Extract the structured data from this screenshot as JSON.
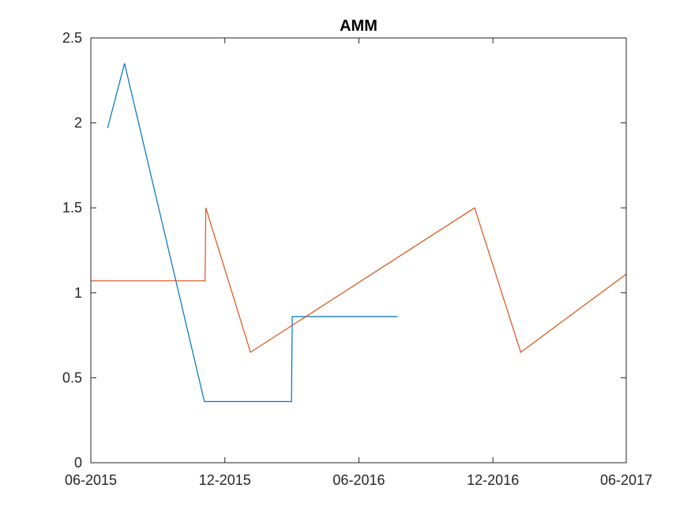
{
  "chart_data": {
    "type": "line",
    "title": "AMM",
    "xlabel": "",
    "ylabel": "",
    "x_axis_type": "date",
    "xlim": [
      "2015-06-01",
      "2017-06-01"
    ],
    "ylim": [
      0,
      2.5
    ],
    "x_ticks": [
      "2015-06-01",
      "2015-12-01",
      "2016-06-01",
      "2016-12-01",
      "2017-06-01"
    ],
    "x_tick_labels": [
      "06-2015",
      "12-2015",
      "06-2016",
      "12-2016",
      "06-2017"
    ],
    "y_ticks": [
      0,
      0.5,
      1,
      1.5,
      2,
      2.5
    ],
    "y_tick_labels": [
      "0",
      "0.5",
      "1",
      "1.5",
      "2",
      "2.5"
    ],
    "grid": false,
    "legend": "none",
    "series": [
      {
        "color": "#0072BD",
        "points": [
          {
            "x": "2015-06-24",
            "y": 1.97
          },
          {
            "x": "2015-07-17",
            "y": 2.35
          },
          {
            "x": "2015-11-03",
            "y": 0.36
          },
          {
            "x": "2016-03-01",
            "y": 0.36
          },
          {
            "x": "2016-03-02",
            "y": 0.86
          },
          {
            "x": "2016-07-24",
            "y": 0.86
          }
        ]
      },
      {
        "color": "#D95319",
        "points": [
          {
            "x": "2015-06-01",
            "y": 1.07
          },
          {
            "x": "2015-11-04",
            "y": 1.07
          },
          {
            "x": "2015-11-05",
            "y": 1.5
          },
          {
            "x": "2016-01-05",
            "y": 0.65
          },
          {
            "x": "2016-11-06",
            "y": 1.5
          },
          {
            "x": "2017-01-08",
            "y": 0.65
          },
          {
            "x": "2017-06-01",
            "y": 1.11
          }
        ]
      }
    ]
  }
}
